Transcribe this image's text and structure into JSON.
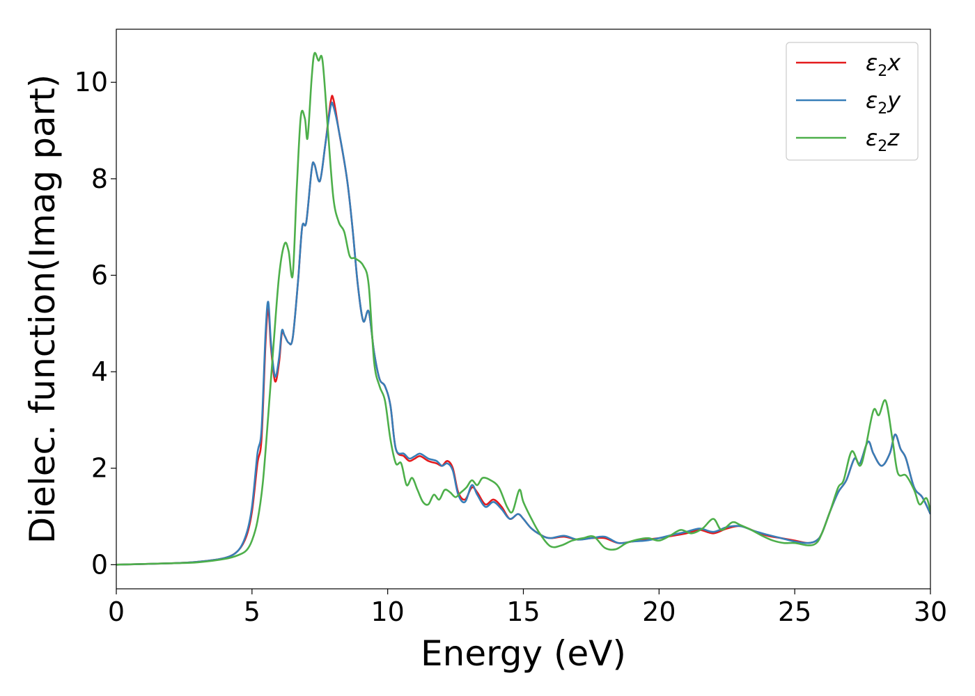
{
  "chart_data": {
    "type": "line",
    "title": "",
    "xlabel": "Energy (eV)",
    "ylabel": "Dielec. function(Imag part)",
    "xlim": [
      0,
      30
    ],
    "ylim": [
      -0.5,
      11.1
    ],
    "xticks": [
      0,
      5,
      10,
      15,
      20,
      25,
      30
    ],
    "xtick_labels": [
      "0",
      "5",
      "10",
      "15",
      "20",
      "25",
      "30"
    ],
    "yticks": [
      0,
      2,
      4,
      6,
      8,
      10
    ],
    "ytick_labels": [
      "0",
      "2",
      "4",
      "6",
      "8",
      "10"
    ],
    "grid": false,
    "legend_position": "top-right",
    "series": [
      {
        "name": "ε₂x",
        "legend_base": "ε",
        "legend_sub": "2",
        "legend_suffix": "x",
        "color": "#e41a1c",
        "points": [
          [
            0,
            0
          ],
          [
            2,
            0.03
          ],
          [
            3,
            0.06
          ],
          [
            4,
            0.14
          ],
          [
            4.5,
            0.3
          ],
          [
            4.8,
            0.6
          ],
          [
            5.0,
            1.1
          ],
          [
            5.2,
            2.1
          ],
          [
            5.35,
            2.6
          ],
          [
            5.5,
            4.6
          ],
          [
            5.6,
            5.3
          ],
          [
            5.7,
            4.5
          ],
          [
            5.85,
            3.8
          ],
          [
            6.0,
            4.2
          ],
          [
            6.1,
            4.8
          ],
          [
            6.2,
            4.75
          ],
          [
            6.35,
            4.6
          ],
          [
            6.5,
            4.7
          ],
          [
            6.7,
            5.9
          ],
          [
            6.85,
            7.0
          ],
          [
            7.0,
            7.1
          ],
          [
            7.2,
            8.2
          ],
          [
            7.3,
            8.3
          ],
          [
            7.5,
            7.95
          ],
          [
            7.7,
            8.7
          ],
          [
            7.9,
            9.6
          ],
          [
            8.0,
            9.65
          ],
          [
            8.2,
            9.0
          ],
          [
            8.5,
            8.0
          ],
          [
            8.7,
            7.0
          ],
          [
            8.9,
            5.8
          ],
          [
            9.1,
            5.05
          ],
          [
            9.3,
            5.25
          ],
          [
            9.5,
            4.4
          ],
          [
            9.7,
            3.85
          ],
          [
            9.9,
            3.7
          ],
          [
            10.1,
            3.3
          ],
          [
            10.3,
            2.4
          ],
          [
            10.6,
            2.25
          ],
          [
            10.8,
            2.15
          ],
          [
            11.0,
            2.2
          ],
          [
            11.2,
            2.25
          ],
          [
            11.5,
            2.15
          ],
          [
            11.8,
            2.1
          ],
          [
            12.0,
            2.05
          ],
          [
            12.2,
            2.15
          ],
          [
            12.4,
            2.0
          ],
          [
            12.6,
            1.5
          ],
          [
            12.85,
            1.35
          ],
          [
            13.1,
            1.6
          ],
          [
            13.3,
            1.5
          ],
          [
            13.6,
            1.25
          ],
          [
            13.9,
            1.35
          ],
          [
            14.2,
            1.2
          ],
          [
            14.5,
            0.95
          ],
          [
            14.8,
            1.05
          ],
          [
            15.0,
            0.95
          ],
          [
            15.3,
            0.75
          ],
          [
            15.7,
            0.6
          ],
          [
            16.0,
            0.55
          ],
          [
            16.5,
            0.58
          ],
          [
            17.0,
            0.52
          ],
          [
            17.5,
            0.55
          ],
          [
            18.0,
            0.55
          ],
          [
            18.5,
            0.45
          ],
          [
            19.0,
            0.48
          ],
          [
            19.5,
            0.52
          ],
          [
            20.0,
            0.55
          ],
          [
            20.5,
            0.6
          ],
          [
            21.0,
            0.65
          ],
          [
            21.5,
            0.72
          ],
          [
            22.0,
            0.65
          ],
          [
            22.5,
            0.75
          ],
          [
            23.0,
            0.8
          ],
          [
            23.5,
            0.7
          ],
          [
            24.0,
            0.6
          ],
          [
            24.5,
            0.55
          ],
          [
            25.0,
            0.5
          ],
          [
            25.5,
            0.45
          ],
          [
            25.8,
            0.5
          ],
          [
            26.0,
            0.65
          ],
          [
            26.3,
            1.1
          ],
          [
            26.6,
            1.5
          ],
          [
            26.9,
            1.75
          ],
          [
            27.2,
            2.2
          ],
          [
            27.4,
            2.1
          ],
          [
            27.7,
            2.55
          ],
          [
            27.9,
            2.3
          ],
          [
            28.2,
            2.05
          ],
          [
            28.5,
            2.3
          ],
          [
            28.7,
            2.7
          ],
          [
            28.9,
            2.4
          ],
          [
            29.1,
            2.2
          ],
          [
            29.4,
            1.6
          ],
          [
            29.7,
            1.4
          ],
          [
            30.0,
            1.05
          ]
        ]
      },
      {
        "name": "ε₂y",
        "legend_base": "ε",
        "legend_sub": "2",
        "legend_suffix": "y",
        "color": "#377eb8",
        "points": [
          [
            0,
            0
          ],
          [
            2,
            0.03
          ],
          [
            3,
            0.06
          ],
          [
            4,
            0.14
          ],
          [
            4.5,
            0.3
          ],
          [
            4.8,
            0.65
          ],
          [
            5.0,
            1.2
          ],
          [
            5.2,
            2.3
          ],
          [
            5.35,
            2.8
          ],
          [
            5.5,
            4.8
          ],
          [
            5.6,
            5.45
          ],
          [
            5.7,
            4.6
          ],
          [
            5.85,
            3.9
          ],
          [
            6.0,
            4.3
          ],
          [
            6.1,
            4.85
          ],
          [
            6.2,
            4.75
          ],
          [
            6.35,
            4.6
          ],
          [
            6.5,
            4.7
          ],
          [
            6.7,
            5.9
          ],
          [
            6.85,
            7.0
          ],
          [
            7.0,
            7.1
          ],
          [
            7.2,
            8.2
          ],
          [
            7.3,
            8.3
          ],
          [
            7.5,
            7.95
          ],
          [
            7.7,
            8.7
          ],
          [
            7.9,
            9.5
          ],
          [
            8.0,
            9.5
          ],
          [
            8.2,
            9.0
          ],
          [
            8.5,
            8.0
          ],
          [
            8.7,
            7.0
          ],
          [
            8.9,
            5.8
          ],
          [
            9.1,
            5.05
          ],
          [
            9.3,
            5.25
          ],
          [
            9.5,
            4.4
          ],
          [
            9.7,
            3.85
          ],
          [
            9.9,
            3.7
          ],
          [
            10.1,
            3.3
          ],
          [
            10.3,
            2.4
          ],
          [
            10.6,
            2.3
          ],
          [
            10.8,
            2.2
          ],
          [
            11.0,
            2.25
          ],
          [
            11.2,
            2.3
          ],
          [
            11.5,
            2.2
          ],
          [
            11.8,
            2.15
          ],
          [
            12.0,
            2.05
          ],
          [
            12.2,
            2.1
          ],
          [
            12.4,
            1.95
          ],
          [
            12.6,
            1.45
          ],
          [
            12.85,
            1.3
          ],
          [
            13.1,
            1.65
          ],
          [
            13.3,
            1.45
          ],
          [
            13.6,
            1.2
          ],
          [
            13.9,
            1.3
          ],
          [
            14.2,
            1.15
          ],
          [
            14.5,
            0.95
          ],
          [
            14.8,
            1.05
          ],
          [
            15.0,
            0.95
          ],
          [
            15.3,
            0.75
          ],
          [
            15.7,
            0.6
          ],
          [
            16.0,
            0.55
          ],
          [
            16.5,
            0.6
          ],
          [
            17.0,
            0.52
          ],
          [
            17.5,
            0.55
          ],
          [
            18.0,
            0.58
          ],
          [
            18.5,
            0.45
          ],
          [
            19.0,
            0.48
          ],
          [
            19.5,
            0.5
          ],
          [
            20.0,
            0.55
          ],
          [
            20.5,
            0.62
          ],
          [
            21.0,
            0.68
          ],
          [
            21.5,
            0.75
          ],
          [
            22.0,
            0.68
          ],
          [
            22.5,
            0.78
          ],
          [
            23.0,
            0.8
          ],
          [
            23.5,
            0.7
          ],
          [
            24.0,
            0.62
          ],
          [
            24.5,
            0.55
          ],
          [
            25.0,
            0.48
          ],
          [
            25.5,
            0.45
          ],
          [
            25.8,
            0.5
          ],
          [
            26.0,
            0.65
          ],
          [
            26.3,
            1.1
          ],
          [
            26.6,
            1.5
          ],
          [
            26.9,
            1.75
          ],
          [
            27.2,
            2.2
          ],
          [
            27.4,
            2.1
          ],
          [
            27.7,
            2.55
          ],
          [
            27.9,
            2.3
          ],
          [
            28.2,
            2.05
          ],
          [
            28.5,
            2.3
          ],
          [
            28.7,
            2.7
          ],
          [
            28.9,
            2.4
          ],
          [
            29.1,
            2.2
          ],
          [
            29.4,
            1.6
          ],
          [
            29.7,
            1.4
          ],
          [
            30.0,
            1.05
          ]
        ]
      },
      {
        "name": "ε₂z",
        "legend_base": "ε",
        "legend_sub": "2",
        "legend_suffix": "z",
        "color": "#4daf4a",
        "points": [
          [
            0,
            0
          ],
          [
            2,
            0.03
          ],
          [
            3,
            0.05
          ],
          [
            4,
            0.12
          ],
          [
            4.5,
            0.2
          ],
          [
            4.8,
            0.3
          ],
          [
            5.0,
            0.5
          ],
          [
            5.2,
            0.9
          ],
          [
            5.4,
            1.7
          ],
          [
            5.6,
            3.1
          ],
          [
            5.8,
            4.6
          ],
          [
            6.0,
            6.0
          ],
          [
            6.2,
            6.65
          ],
          [
            6.35,
            6.5
          ],
          [
            6.5,
            6.0
          ],
          [
            6.65,
            7.8
          ],
          [
            6.8,
            9.3
          ],
          [
            6.95,
            9.25
          ],
          [
            7.05,
            8.85
          ],
          [
            7.2,
            10.1
          ],
          [
            7.3,
            10.6
          ],
          [
            7.45,
            10.45
          ],
          [
            7.6,
            10.45
          ],
          [
            7.8,
            9.0
          ],
          [
            8.0,
            7.6
          ],
          [
            8.2,
            7.1
          ],
          [
            8.4,
            6.9
          ],
          [
            8.6,
            6.4
          ],
          [
            8.8,
            6.35
          ],
          [
            9.1,
            6.2
          ],
          [
            9.3,
            5.8
          ],
          [
            9.5,
            4.2
          ],
          [
            9.7,
            3.7
          ],
          [
            9.9,
            3.4
          ],
          [
            10.1,
            2.6
          ],
          [
            10.3,
            2.1
          ],
          [
            10.5,
            2.1
          ],
          [
            10.7,
            1.65
          ],
          [
            10.9,
            1.8
          ],
          [
            11.1,
            1.55
          ],
          [
            11.3,
            1.3
          ],
          [
            11.5,
            1.25
          ],
          [
            11.7,
            1.45
          ],
          [
            11.9,
            1.35
          ],
          [
            12.1,
            1.55
          ],
          [
            12.3,
            1.5
          ],
          [
            12.5,
            1.4
          ],
          [
            12.7,
            1.5
          ],
          [
            12.9,
            1.6
          ],
          [
            13.1,
            1.75
          ],
          [
            13.3,
            1.65
          ],
          [
            13.5,
            1.8
          ],
          [
            13.8,
            1.75
          ],
          [
            14.1,
            1.6
          ],
          [
            14.4,
            1.2
          ],
          [
            14.6,
            1.1
          ],
          [
            14.85,
            1.55
          ],
          [
            15.0,
            1.3
          ],
          [
            15.3,
            0.95
          ],
          [
            15.6,
            0.65
          ],
          [
            16.0,
            0.38
          ],
          [
            16.4,
            0.4
          ],
          [
            16.8,
            0.5
          ],
          [
            17.2,
            0.55
          ],
          [
            17.6,
            0.58
          ],
          [
            18.0,
            0.35
          ],
          [
            18.4,
            0.32
          ],
          [
            18.8,
            0.45
          ],
          [
            19.2,
            0.52
          ],
          [
            19.6,
            0.55
          ],
          [
            20.0,
            0.5
          ],
          [
            20.4,
            0.6
          ],
          [
            20.8,
            0.72
          ],
          [
            21.2,
            0.65
          ],
          [
            21.6,
            0.75
          ],
          [
            22.0,
            0.95
          ],
          [
            22.3,
            0.72
          ],
          [
            22.7,
            0.88
          ],
          [
            23.0,
            0.82
          ],
          [
            23.4,
            0.72
          ],
          [
            23.8,
            0.6
          ],
          [
            24.2,
            0.5
          ],
          [
            24.6,
            0.45
          ],
          [
            25.0,
            0.45
          ],
          [
            25.5,
            0.4
          ],
          [
            25.8,
            0.45
          ],
          [
            26.0,
            0.65
          ],
          [
            26.3,
            1.1
          ],
          [
            26.6,
            1.6
          ],
          [
            26.8,
            1.75
          ],
          [
            27.1,
            2.35
          ],
          [
            27.4,
            2.05
          ],
          [
            27.6,
            2.4
          ],
          [
            27.9,
            3.2
          ],
          [
            28.1,
            3.1
          ],
          [
            28.35,
            3.4
          ],
          [
            28.6,
            2.6
          ],
          [
            28.8,
            1.9
          ],
          [
            29.1,
            1.85
          ],
          [
            29.4,
            1.55
          ],
          [
            29.6,
            1.25
          ],
          [
            29.85,
            1.38
          ],
          [
            30.0,
            1.1
          ]
        ]
      }
    ]
  }
}
